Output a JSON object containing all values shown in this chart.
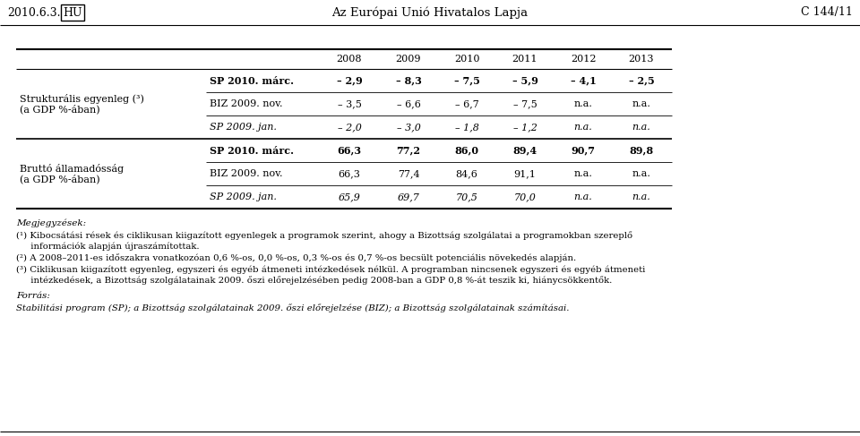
{
  "header_date": "2010.6.3.",
  "header_lang": "HU",
  "header_title": "Az Európai Unió Hivatalos Lapja",
  "header_ref": "C 144/11",
  "col_years": [
    "2008",
    "2009",
    "2010",
    "2011",
    "2012",
    "2013"
  ],
  "sections": [
    {
      "row_label_line1": "Strukturális egyenleg (³)",
      "row_label_line2": "(a GDP %-ában)",
      "rows": [
        {
          "source": "SP 2010. márc.",
          "bold": true,
          "italic": false,
          "values": [
            "– 2,9",
            "– 8,3",
            "– 7,5",
            "– 5,9",
            "– 4,1",
            "– 2,5"
          ]
        },
        {
          "source": "BIZ 2009. nov.",
          "bold": false,
          "italic": false,
          "values": [
            "– 3,5",
            "– 6,6",
            "– 6,7",
            "– 7,5",
            "n.a.",
            "n.a."
          ]
        },
        {
          "source": "SP 2009. jan.",
          "bold": false,
          "italic": true,
          "values": [
            "– 2,0",
            "– 3,0",
            "– 1,8",
            "– 1,2",
            "n.a.",
            "n.a."
          ]
        }
      ]
    },
    {
      "row_label_line1": "Bruttó államadósság",
      "row_label_line2": "(a GDP %-ában)",
      "rows": [
        {
          "source": "SP 2010. márc.",
          "bold": true,
          "italic": false,
          "values": [
            "66,3",
            "77,2",
            "86,0",
            "89,4",
            "90,7",
            "89,8"
          ]
        },
        {
          "source": "BIZ 2009. nov.",
          "bold": false,
          "italic": false,
          "values": [
            "66,3",
            "77,4",
            "84,6",
            "91,1",
            "n.a.",
            "n.a."
          ]
        },
        {
          "source": "SP 2009. jan.",
          "bold": false,
          "italic": true,
          "values": [
            "65,9",
            "69,7",
            "70,5",
            "70,0",
            "n.a.",
            "n.a."
          ]
        }
      ]
    }
  ],
  "notes_title": "Megjegyzések:",
  "notes": [
    [
      "(¹) Kibocsátási rések és ciklikusan kiigazított egyenlegek a programok szerint, ahogy a Bizottság szolgálatai a programokban szereplő",
      "     információk alapján újraszámítottak."
    ],
    [
      "(²) A 2008–2011-es időszakra vonatkozóan 0,6 %-os, 0,0 %-os, 0,3 %-os és 0,7 %-os becsült potenciális növekedés alapján."
    ],
    [
      "(³) Ciklikusan kiigazított egyenleg, egyszeri és egyéb átmeneti intézkedések nélkül. A programban nincsenek egyszeri és egyéb átmeneti",
      "     intézkedések, a Bizottság szolgálatainak 2009. őszi előrejelzésében pedig 2008-ban a GDP 0,8 %-át teszik ki, hiánycsökkentők."
    ]
  ],
  "source_title": "Forrás:",
  "source_text": "Stabilitási program (SP); a Bizottság szolgálatainak 2009. őszi előrejelzése (BIZ); a Bizottság szolgálatainak számításai.",
  "bg_color": "#ffffff",
  "text_color": "#000000",
  "table_font_size": 8.0,
  "note_font_size": 7.5,
  "header_font_size": 9.0
}
